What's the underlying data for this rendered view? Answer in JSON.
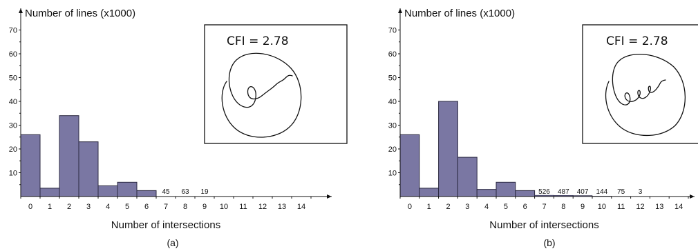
{
  "chart_data": [
    {
      "type": "bar",
      "caption": "(a)",
      "ylabel": "Number of lines (x1000)",
      "xlabel": "Number of intersections",
      "ylim": [
        0,
        75
      ],
      "yticks": [
        "10",
        "20",
        "30",
        "40",
        "50",
        "60",
        "70"
      ],
      "categories": [
        "0",
        "1",
        "2",
        "3",
        "4",
        "5",
        "6",
        "7",
        "8",
        "9",
        "10",
        "11",
        "12",
        "13",
        "14"
      ],
      "values": [
        26,
        3.5,
        34,
        23,
        4.5,
        6,
        2.5,
        0.045,
        0.063,
        0.019,
        0,
        0,
        0,
        0,
        0
      ],
      "small_value_labels": [
        {
          "category": "7",
          "text": "45"
        },
        {
          "category": "8",
          "text": "63"
        },
        {
          "category": "9",
          "text": "19"
        }
      ],
      "inset": {
        "text": "CFI = 2.78",
        "curve": "spiral-single-loop"
      }
    },
    {
      "type": "bar",
      "caption": "(b)",
      "ylabel": "Number of lines (x1000)",
      "xlabel": "Number of intersections",
      "ylim": [
        0,
        75
      ],
      "yticks": [
        "10",
        "20",
        "30",
        "40",
        "50",
        "60",
        "70"
      ],
      "categories": [
        "0",
        "1",
        "2",
        "3",
        "4",
        "5",
        "6",
        "7",
        "8",
        "9",
        "10",
        "11",
        "12",
        "13",
        "14"
      ],
      "values": [
        26,
        3.5,
        40,
        16.5,
        3,
        6,
        2.5,
        0.526,
        0.487,
        0.407,
        0.144,
        0.075,
        0.003,
        0,
        0
      ],
      "small_value_labels": [
        {
          "category": "7",
          "text": "526"
        },
        {
          "category": "8",
          "text": "487"
        },
        {
          "category": "9",
          "text": "407"
        },
        {
          "category": "10",
          "text": "144"
        },
        {
          "category": "11",
          "text": "75"
        },
        {
          "category": "12",
          "text": "3"
        }
      ],
      "inset": {
        "text": "CFI = 2.78",
        "curve": "spiral-multi-loop"
      }
    }
  ],
  "colors": {
    "bar_fill": "#7A77A3",
    "bar_stroke": "#2b2940",
    "axis": "#111111"
  }
}
